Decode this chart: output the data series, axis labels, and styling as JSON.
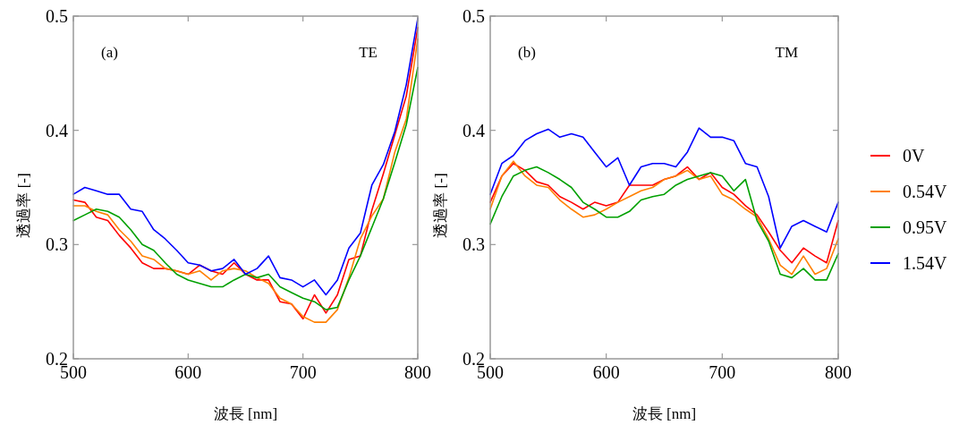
{
  "chart_data": [
    {
      "type": "line",
      "annotations": [
        "(a)",
        "TE"
      ],
      "xlabel": "波長 [nm]",
      "ylabel": "透過率 [-]",
      "xlim": [
        500,
        800
      ],
      "ylim": [
        0.2,
        0.5
      ],
      "xticks": [
        500,
        600,
        700,
        800
      ],
      "yticks": [
        0.2,
        0.3,
        0.4,
        0.5
      ],
      "grid": false,
      "legend": false,
      "x": [
        500,
        510,
        520,
        530,
        540,
        550,
        560,
        570,
        580,
        590,
        600,
        610,
        620,
        630,
        640,
        650,
        660,
        670,
        680,
        690,
        700,
        710,
        720,
        730,
        740,
        750,
        760,
        770,
        780,
        790,
        800
      ],
      "series": [
        {
          "color": "#ff0000",
          "values": [
            0.339,
            0.337,
            0.324,
            0.321,
            0.308,
            0.297,
            0.284,
            0.279,
            0.279,
            0.277,
            0.274,
            0.282,
            0.277,
            0.274,
            0.284,
            0.274,
            0.269,
            0.269,
            0.25,
            0.248,
            0.235,
            0.256,
            0.24,
            0.256,
            0.287,
            0.29,
            0.33,
            0.362,
            0.396,
            0.43,
            0.49
          ]
        },
        {
          "color": "#ff8000",
          "values": [
            0.334,
            0.334,
            0.329,
            0.326,
            0.313,
            0.303,
            0.29,
            0.287,
            0.279,
            0.277,
            0.274,
            0.277,
            0.269,
            0.277,
            0.279,
            0.277,
            0.271,
            0.266,
            0.253,
            0.248,
            0.237,
            0.232,
            0.232,
            0.243,
            0.271,
            0.305,
            0.325,
            0.34,
            0.381,
            0.41,
            0.48
          ]
        },
        {
          "color": "#00a000",
          "values": [
            0.321,
            0.326,
            0.331,
            0.329,
            0.324,
            0.313,
            0.3,
            0.295,
            0.284,
            0.274,
            0.269,
            0.266,
            0.263,
            0.263,
            0.269,
            0.274,
            0.271,
            0.274,
            0.263,
            0.258,
            0.253,
            0.25,
            0.243,
            0.245,
            0.269,
            0.29,
            0.315,
            0.34,
            0.372,
            0.405,
            0.455
          ]
        },
        {
          "color": "#0000ff",
          "values": [
            0.344,
            0.35,
            0.347,
            0.344,
            0.344,
            0.331,
            0.329,
            0.313,
            0.305,
            0.295,
            0.284,
            0.282,
            0.277,
            0.279,
            0.287,
            0.274,
            0.279,
            0.29,
            0.271,
            0.269,
            0.263,
            0.269,
            0.256,
            0.269,
            0.297,
            0.31,
            0.352,
            0.37,
            0.399,
            0.44,
            0.498
          ]
        }
      ]
    },
    {
      "type": "line",
      "annotations": [
        "(b)",
        "TM"
      ],
      "xlabel": "波長 [nm]",
      "ylabel": "透過率 [-]",
      "xlim": [
        500,
        800
      ],
      "ylim": [
        0.2,
        0.5
      ],
      "xticks": [
        500,
        600,
        700,
        800
      ],
      "yticks": [
        0.2,
        0.3,
        0.4,
        0.5
      ],
      "grid": false,
      "legend": "right",
      "x": [
        500,
        510,
        520,
        530,
        540,
        550,
        560,
        570,
        580,
        590,
        600,
        610,
        620,
        630,
        640,
        650,
        660,
        670,
        680,
        690,
        700,
        710,
        720,
        730,
        740,
        750,
        760,
        770,
        780,
        790,
        800
      ],
      "series": [
        {
          "name": "0V",
          "color": "#ff0000",
          "values": [
            0.337,
            0.36,
            0.371,
            0.365,
            0.355,
            0.352,
            0.342,
            0.337,
            0.331,
            0.337,
            0.334,
            0.337,
            0.352,
            0.352,
            0.352,
            0.357,
            0.36,
            0.368,
            0.357,
            0.363,
            0.35,
            0.344,
            0.334,
            0.326,
            0.311,
            0.295,
            0.284,
            0.297,
            0.29,
            0.284,
            0.321
          ]
        },
        {
          "name": "0.54V",
          "color": "#ff8000",
          "values": [
            0.331,
            0.36,
            0.373,
            0.36,
            0.352,
            0.35,
            0.339,
            0.331,
            0.324,
            0.326,
            0.331,
            0.337,
            0.342,
            0.347,
            0.35,
            0.357,
            0.36,
            0.365,
            0.357,
            0.36,
            0.344,
            0.339,
            0.331,
            0.324,
            0.305,
            0.282,
            0.274,
            0.29,
            0.274,
            0.279,
            0.305
          ]
        },
        {
          "name": "0.95V",
          "color": "#00a000",
          "values": [
            0.318,
            0.342,
            0.36,
            0.365,
            0.368,
            0.363,
            0.357,
            0.35,
            0.337,
            0.331,
            0.324,
            0.324,
            0.329,
            0.339,
            0.342,
            0.344,
            0.352,
            0.357,
            0.36,
            0.363,
            0.36,
            0.347,
            0.357,
            0.321,
            0.303,
            0.274,
            0.271,
            0.279,
            0.269,
            0.269,
            0.292
          ]
        },
        {
          "name": "1.54V",
          "color": "#0000ff",
          "values": [
            0.344,
            0.371,
            0.378,
            0.391,
            0.397,
            0.401,
            0.394,
            0.397,
            0.394,
            0.381,
            0.368,
            0.376,
            0.352,
            0.368,
            0.371,
            0.371,
            0.368,
            0.381,
            0.402,
            0.394,
            0.394,
            0.391,
            0.371,
            0.368,
            0.342,
            0.297,
            0.316,
            0.321,
            0.316,
            0.311,
            0.337
          ]
        }
      ]
    }
  ]
}
